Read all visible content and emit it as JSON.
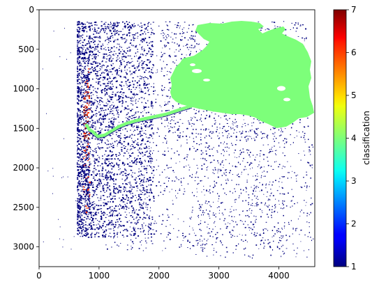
{
  "chart_data": {
    "type": "heatmap",
    "title": "",
    "xlabel": "",
    "ylabel": "",
    "xlim": [
      0,
      4600
    ],
    "ylim": [
      3250,
      0
    ],
    "x_ticks": [
      0,
      1000,
      2000,
      3000,
      4000
    ],
    "y_ticks": [
      0,
      500,
      1000,
      1500,
      2000,
      2500,
      3000
    ],
    "x_tick_labels": [
      "0",
      "1000",
      "2000",
      "3000",
      "4000"
    ],
    "y_tick_labels": [
      "0",
      "500",
      "1000",
      "1500",
      "2000",
      "2500",
      "3000"
    ],
    "colorbar": {
      "label": "classification",
      "range": [
        1,
        7
      ],
      "ticks": [
        1,
        2,
        3,
        4,
        5,
        6,
        7
      ],
      "tick_labels": [
        "1",
        "2",
        "3",
        "4",
        "5",
        "6",
        "7"
      ],
      "colormap": "jet"
    },
    "dominant_values": {
      "water_body": 4,
      "scattered_pixels": 1,
      "hotspot_strip": 6
    },
    "colors": {
      "class_1": "#00007f",
      "class_4": "#7dff7a",
      "class_6": "#ff3000",
      "class_7": "#7f0000"
    }
  }
}
